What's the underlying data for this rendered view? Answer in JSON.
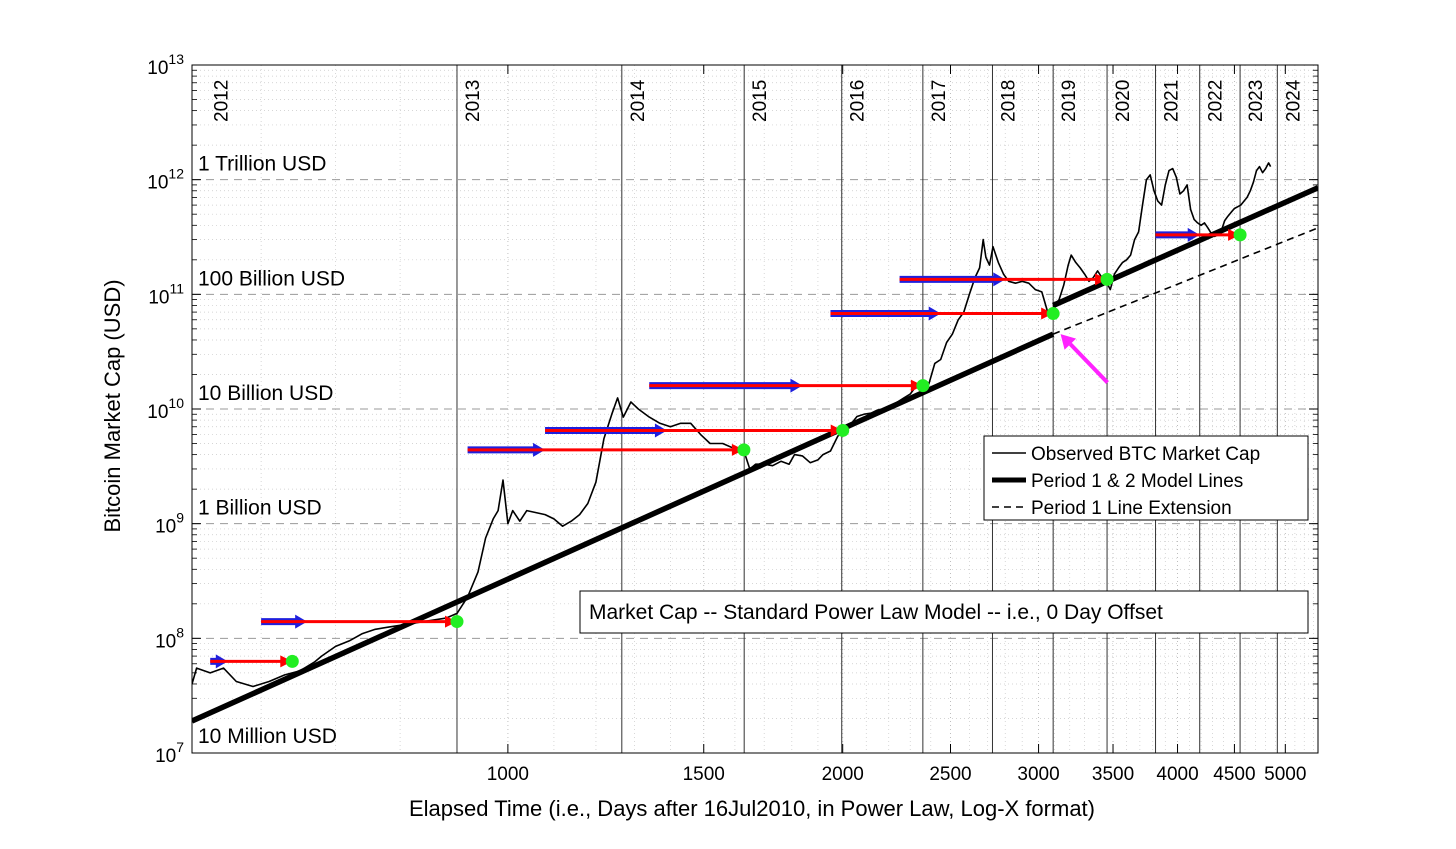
{
  "chart_data": {
    "type": "line",
    "title": "",
    "xlabel": "Elapsed Time (i.e., Days after 16Jul2010, in Power Law, Log-X format)",
    "ylabel": "Bitcoin Market Cap (USD)",
    "x_scale": "log",
    "y_scale": "log",
    "xlim": [
      520,
      5350
    ],
    "ylim": [
      10000000,
      10000000000000
    ],
    "grid": true,
    "x_ticks": [
      {
        "value": 1000,
        "label": "1000"
      },
      {
        "value": 1500,
        "label": "1500"
      },
      {
        "value": 2000,
        "label": "2000"
      },
      {
        "value": 2500,
        "label": "2500"
      },
      {
        "value": 3000,
        "label": "3000"
      },
      {
        "value": 3500,
        "label": "3500"
      },
      {
        "value": 4000,
        "label": "4000"
      },
      {
        "value": 4500,
        "label": "4500"
      },
      {
        "value": 5000,
        "label": "5000"
      }
    ],
    "y_ticks": [
      {
        "value": 10000000,
        "base": "10",
        "exp": "7"
      },
      {
        "value": 100000000,
        "base": "10",
        "exp": "8"
      },
      {
        "value": 1000000000,
        "base": "10",
        "exp": "9"
      },
      {
        "value": 10000000000,
        "base": "10",
        "exp": "10"
      },
      {
        "value": 100000000000,
        "base": "10",
        "exp": "11"
      },
      {
        "value": 1000000000000,
        "base": "10",
        "exp": "12"
      },
      {
        "value": 10000000000000,
        "base": "10",
        "exp": "13"
      }
    ],
    "y_annotations": [
      {
        "value": 10000000,
        "label": "10 Million USD"
      },
      {
        "value": 1000000000,
        "label": "1 Billion USD"
      },
      {
        "value": 10000000000,
        "label": "10 Billion USD"
      },
      {
        "value": 100000000000,
        "label": "100 Billion USD"
      },
      {
        "value": 1000000000000,
        "label": "1 Trillion USD"
      }
    ],
    "year_markers": [
      {
        "day": 535,
        "label": "2012"
      },
      {
        "day": 900,
        "label": "2013"
      },
      {
        "day": 1266,
        "label": "2014"
      },
      {
        "day": 1631,
        "label": "2015"
      },
      {
        "day": 1996,
        "label": "2016"
      },
      {
        "day": 2361,
        "label": "2017"
      },
      {
        "day": 2727,
        "label": "2018"
      },
      {
        "day": 3092,
        "label": "2019"
      },
      {
        "day": 3457,
        "label": "2020"
      },
      {
        "day": 3822,
        "label": "2021"
      },
      {
        "day": 4188,
        "label": "2022"
      },
      {
        "day": 4553,
        "label": "2023"
      },
      {
        "day": 4918,
        "label": "2024"
      }
    ],
    "series": [
      {
        "name": "Observed BTC Market Cap",
        "style": "thin-solid",
        "color": "#000000",
        "points": [
          [
            520,
            40000000
          ],
          [
            525,
            55000000
          ],
          [
            540,
            50000000
          ],
          [
            555,
            55000000
          ],
          [
            570,
            42000000
          ],
          [
            590,
            38000000
          ],
          [
            610,
            42000000
          ],
          [
            630,
            48000000
          ],
          [
            650,
            52000000
          ],
          [
            670,
            62000000
          ],
          [
            680,
            70000000
          ],
          [
            700,
            85000000
          ],
          [
            720,
            95000000
          ],
          [
            740,
            110000000
          ],
          [
            760,
            120000000
          ],
          [
            780,
            125000000
          ],
          [
            800,
            130000000
          ],
          [
            820,
            135000000
          ],
          [
            840,
            140000000
          ],
          [
            860,
            145000000
          ],
          [
            880,
            150000000
          ],
          [
            900,
            165000000
          ],
          [
            920,
            230000000
          ],
          [
            940,
            380000000
          ],
          [
            955,
            750000000
          ],
          [
            970,
            1100000000
          ],
          [
            980,
            1300000000
          ],
          [
            990,
            2400000000
          ],
          [
            1000,
            1000000000
          ],
          [
            1010,
            1300000000
          ],
          [
            1025,
            1050000000
          ],
          [
            1040,
            1300000000
          ],
          [
            1060,
            1250000000
          ],
          [
            1080,
            1200000000
          ],
          [
            1100,
            1100000000
          ],
          [
            1120,
            950000000
          ],
          [
            1140,
            1050000000
          ],
          [
            1160,
            1200000000
          ],
          [
            1180,
            1500000000
          ],
          [
            1200,
            2300000000
          ],
          [
            1220,
            5500000000
          ],
          [
            1240,
            9000000000
          ],
          [
            1255,
            12500000000
          ],
          [
            1270,
            8500000000
          ],
          [
            1290,
            11500000000
          ],
          [
            1310,
            10000000000
          ],
          [
            1340,
            8500000000
          ],
          [
            1370,
            7500000000
          ],
          [
            1400,
            7000000000
          ],
          [
            1430,
            7500000000
          ],
          [
            1460,
            7500000000
          ],
          [
            1490,
            6000000000
          ],
          [
            1520,
            5000000000
          ],
          [
            1560,
            5000000000
          ],
          [
            1600,
            4500000000
          ],
          [
            1630,
            4300000000
          ],
          [
            1650,
            3000000000
          ],
          [
            1670,
            3300000000
          ],
          [
            1700,
            3300000000
          ],
          [
            1730,
            3200000000
          ],
          [
            1760,
            3500000000
          ],
          [
            1790,
            3300000000
          ],
          [
            1810,
            4000000000
          ],
          [
            1840,
            3900000000
          ],
          [
            1870,
            3400000000
          ],
          [
            1900,
            3600000000
          ],
          [
            1920,
            4000000000
          ],
          [
            1950,
            4300000000
          ],
          [
            1980,
            5800000000
          ],
          [
            2000,
            6300000000
          ],
          [
            2030,
            7200000000
          ],
          [
            2060,
            8600000000
          ],
          [
            2090,
            9000000000
          ],
          [
            2120,
            9200000000
          ],
          [
            2150,
            9800000000
          ],
          [
            2180,
            10000000000
          ],
          [
            2210,
            10500000000
          ],
          [
            2240,
            11500000000
          ],
          [
            2270,
            12500000000
          ],
          [
            2300,
            13500000000
          ],
          [
            2330,
            16000000000
          ],
          [
            2360,
            15000000000
          ],
          [
            2390,
            16500000000
          ],
          [
            2420,
            25000000000
          ],
          [
            2450,
            27000000000
          ],
          [
            2480,
            38000000000
          ],
          [
            2510,
            45000000000
          ],
          [
            2540,
            60000000000
          ],
          [
            2570,
            70000000000
          ],
          [
            2600,
            100000000000
          ],
          [
            2630,
            140000000000
          ],
          [
            2655,
            170000000000
          ],
          [
            2675,
            300000000000
          ],
          [
            2690,
            210000000000
          ],
          [
            2710,
            180000000000
          ],
          [
            2730,
            260000000000
          ],
          [
            2760,
            190000000000
          ],
          [
            2790,
            150000000000
          ],
          [
            2820,
            130000000000
          ],
          [
            2860,
            125000000000
          ],
          [
            2900,
            130000000000
          ],
          [
            2940,
            125000000000
          ],
          [
            2980,
            110000000000
          ],
          [
            3020,
            105000000000
          ],
          [
            3060,
            68000000000
          ],
          [
            3080,
            70000000000
          ],
          [
            3100,
            80000000000
          ],
          [
            3130,
            90000000000
          ],
          [
            3160,
            120000000000
          ],
          [
            3190,
            180000000000
          ],
          [
            3210,
            220000000000
          ],
          [
            3240,
            190000000000
          ],
          [
            3270,
            170000000000
          ],
          [
            3300,
            150000000000
          ],
          [
            3330,
            130000000000
          ],
          [
            3360,
            140000000000
          ],
          [
            3390,
            160000000000
          ],
          [
            3420,
            140000000000
          ],
          [
            3450,
            130000000000
          ],
          [
            3480,
            110000000000
          ],
          [
            3510,
            150000000000
          ],
          [
            3540,
            170000000000
          ],
          [
            3570,
            190000000000
          ],
          [
            3600,
            200000000000
          ],
          [
            3630,
            220000000000
          ],
          [
            3660,
            300000000000
          ],
          [
            3690,
            350000000000
          ],
          [
            3720,
            600000000000
          ],
          [
            3750,
            1000000000000
          ],
          [
            3780,
            1100000000000
          ],
          [
            3810,
            800000000000
          ],
          [
            3840,
            650000000000
          ],
          [
            3870,
            600000000000
          ],
          [
            3900,
            900000000000
          ],
          [
            3930,
            1200000000000
          ],
          [
            3960,
            1250000000000
          ],
          [
            3990,
            1050000000000
          ],
          [
            4020,
            750000000000
          ],
          [
            4050,
            800000000000
          ],
          [
            4080,
            900000000000
          ],
          [
            4110,
            550000000000
          ],
          [
            4140,
            450000000000
          ],
          [
            4170,
            420000000000
          ],
          [
            4200,
            400000000000
          ],
          [
            4230,
            420000000000
          ],
          [
            4260,
            380000000000
          ],
          [
            4290,
            340000000000
          ],
          [
            4320,
            320000000000
          ],
          [
            4350,
            330000000000
          ],
          [
            4380,
            360000000000
          ],
          [
            4410,
            440000000000
          ],
          [
            4440,
            480000000000
          ],
          [
            4470,
            520000000000
          ],
          [
            4500,
            560000000000
          ],
          [
            4530,
            580000000000
          ],
          [
            4560,
            600000000000
          ],
          [
            4590,
            650000000000
          ],
          [
            4620,
            700000000000
          ],
          [
            4650,
            800000000000
          ],
          [
            4680,
            950000000000
          ],
          [
            4710,
            1200000000000
          ],
          [
            4740,
            1300000000000
          ],
          [
            4770,
            1150000000000
          ],
          [
            4800,
            1250000000000
          ],
          [
            4830,
            1400000000000
          ],
          [
            4850,
            1300000000000
          ]
        ]
      },
      {
        "name": "Period 1 & 2 Model Lines",
        "style": "thick-solid",
        "color": "#000000",
        "segments": [
          [
            [
              520,
              19000000
            ],
            [
              3092,
              45000000000
            ]
          ],
          [
            [
              3092,
              80000000000
            ],
            [
              5350,
              850000000000
            ]
          ]
        ]
      },
      {
        "name": "Period 1 Line Extension",
        "style": "dashed",
        "color": "#000000",
        "points": [
          [
            3092,
            45000000000
          ],
          [
            5350,
            380000000000
          ]
        ]
      }
    ],
    "offset_arrows": [
      {
        "from_day": 540,
        "to_day": 640,
        "y": 63000000,
        "blue_to_day": 560
      },
      {
        "from_day": 600,
        "to_day": 900,
        "y": 140000000,
        "blue_to_day": 660
      },
      {
        "from_day": 920,
        "to_day": 1630,
        "y": 4400000000,
        "blue_to_day": 1080
      },
      {
        "from_day": 1080,
        "to_day": 2000,
        "y": 6500000000,
        "blue_to_day": 1390
      },
      {
        "from_day": 1340,
        "to_day": 2361,
        "y": 16000000000,
        "blue_to_day": 1840
      },
      {
        "from_day": 1950,
        "to_day": 3092,
        "y": 68000000000,
        "blue_to_day": 2450
      },
      {
        "from_day": 2250,
        "to_day": 3457,
        "y": 135000000000,
        "blue_to_day": 2800
      },
      {
        "from_day": 3822,
        "to_day": 4553,
        "y": 330000000000,
        "blue_to_day": 4188
      }
    ],
    "highlight_points": [
      {
        "day": 640,
        "value": 63000000
      },
      {
        "day": 900,
        "value": 140000000
      },
      {
        "day": 1630,
        "value": 4400000000
      },
      {
        "day": 2000,
        "value": 6500000000
      },
      {
        "day": 2361,
        "value": 16000000000
      },
      {
        "day": 3092,
        "value": 68000000000
      },
      {
        "day": 3457,
        "value": 135000000000
      },
      {
        "day": 4553,
        "value": 330000000000
      }
    ],
    "pointer": {
      "from_day": 3460,
      "from_value": 17000000000,
      "to_day": 3140,
      "to_value": 45000000000
    },
    "legend": {
      "placement": "right",
      "entries": [
        {
          "label": "Observed BTC Market Cap",
          "style": "thin-solid"
        },
        {
          "label": "Period 1 & 2 Model Lines",
          "style": "thick-solid"
        },
        {
          "label": "Period 1 Line Extension",
          "style": "dashed"
        }
      ]
    },
    "annotation_box": {
      "text": "Market Cap -- Standard Power Law Model -- i.e., 0 Day Offset"
    },
    "colors": {
      "offset_arrow_red": "#ff0000",
      "offset_arrow_blue": "#1f1fdd",
      "highlight_green": "#22ee22",
      "pointer_magenta": "#ff22ff"
    }
  }
}
